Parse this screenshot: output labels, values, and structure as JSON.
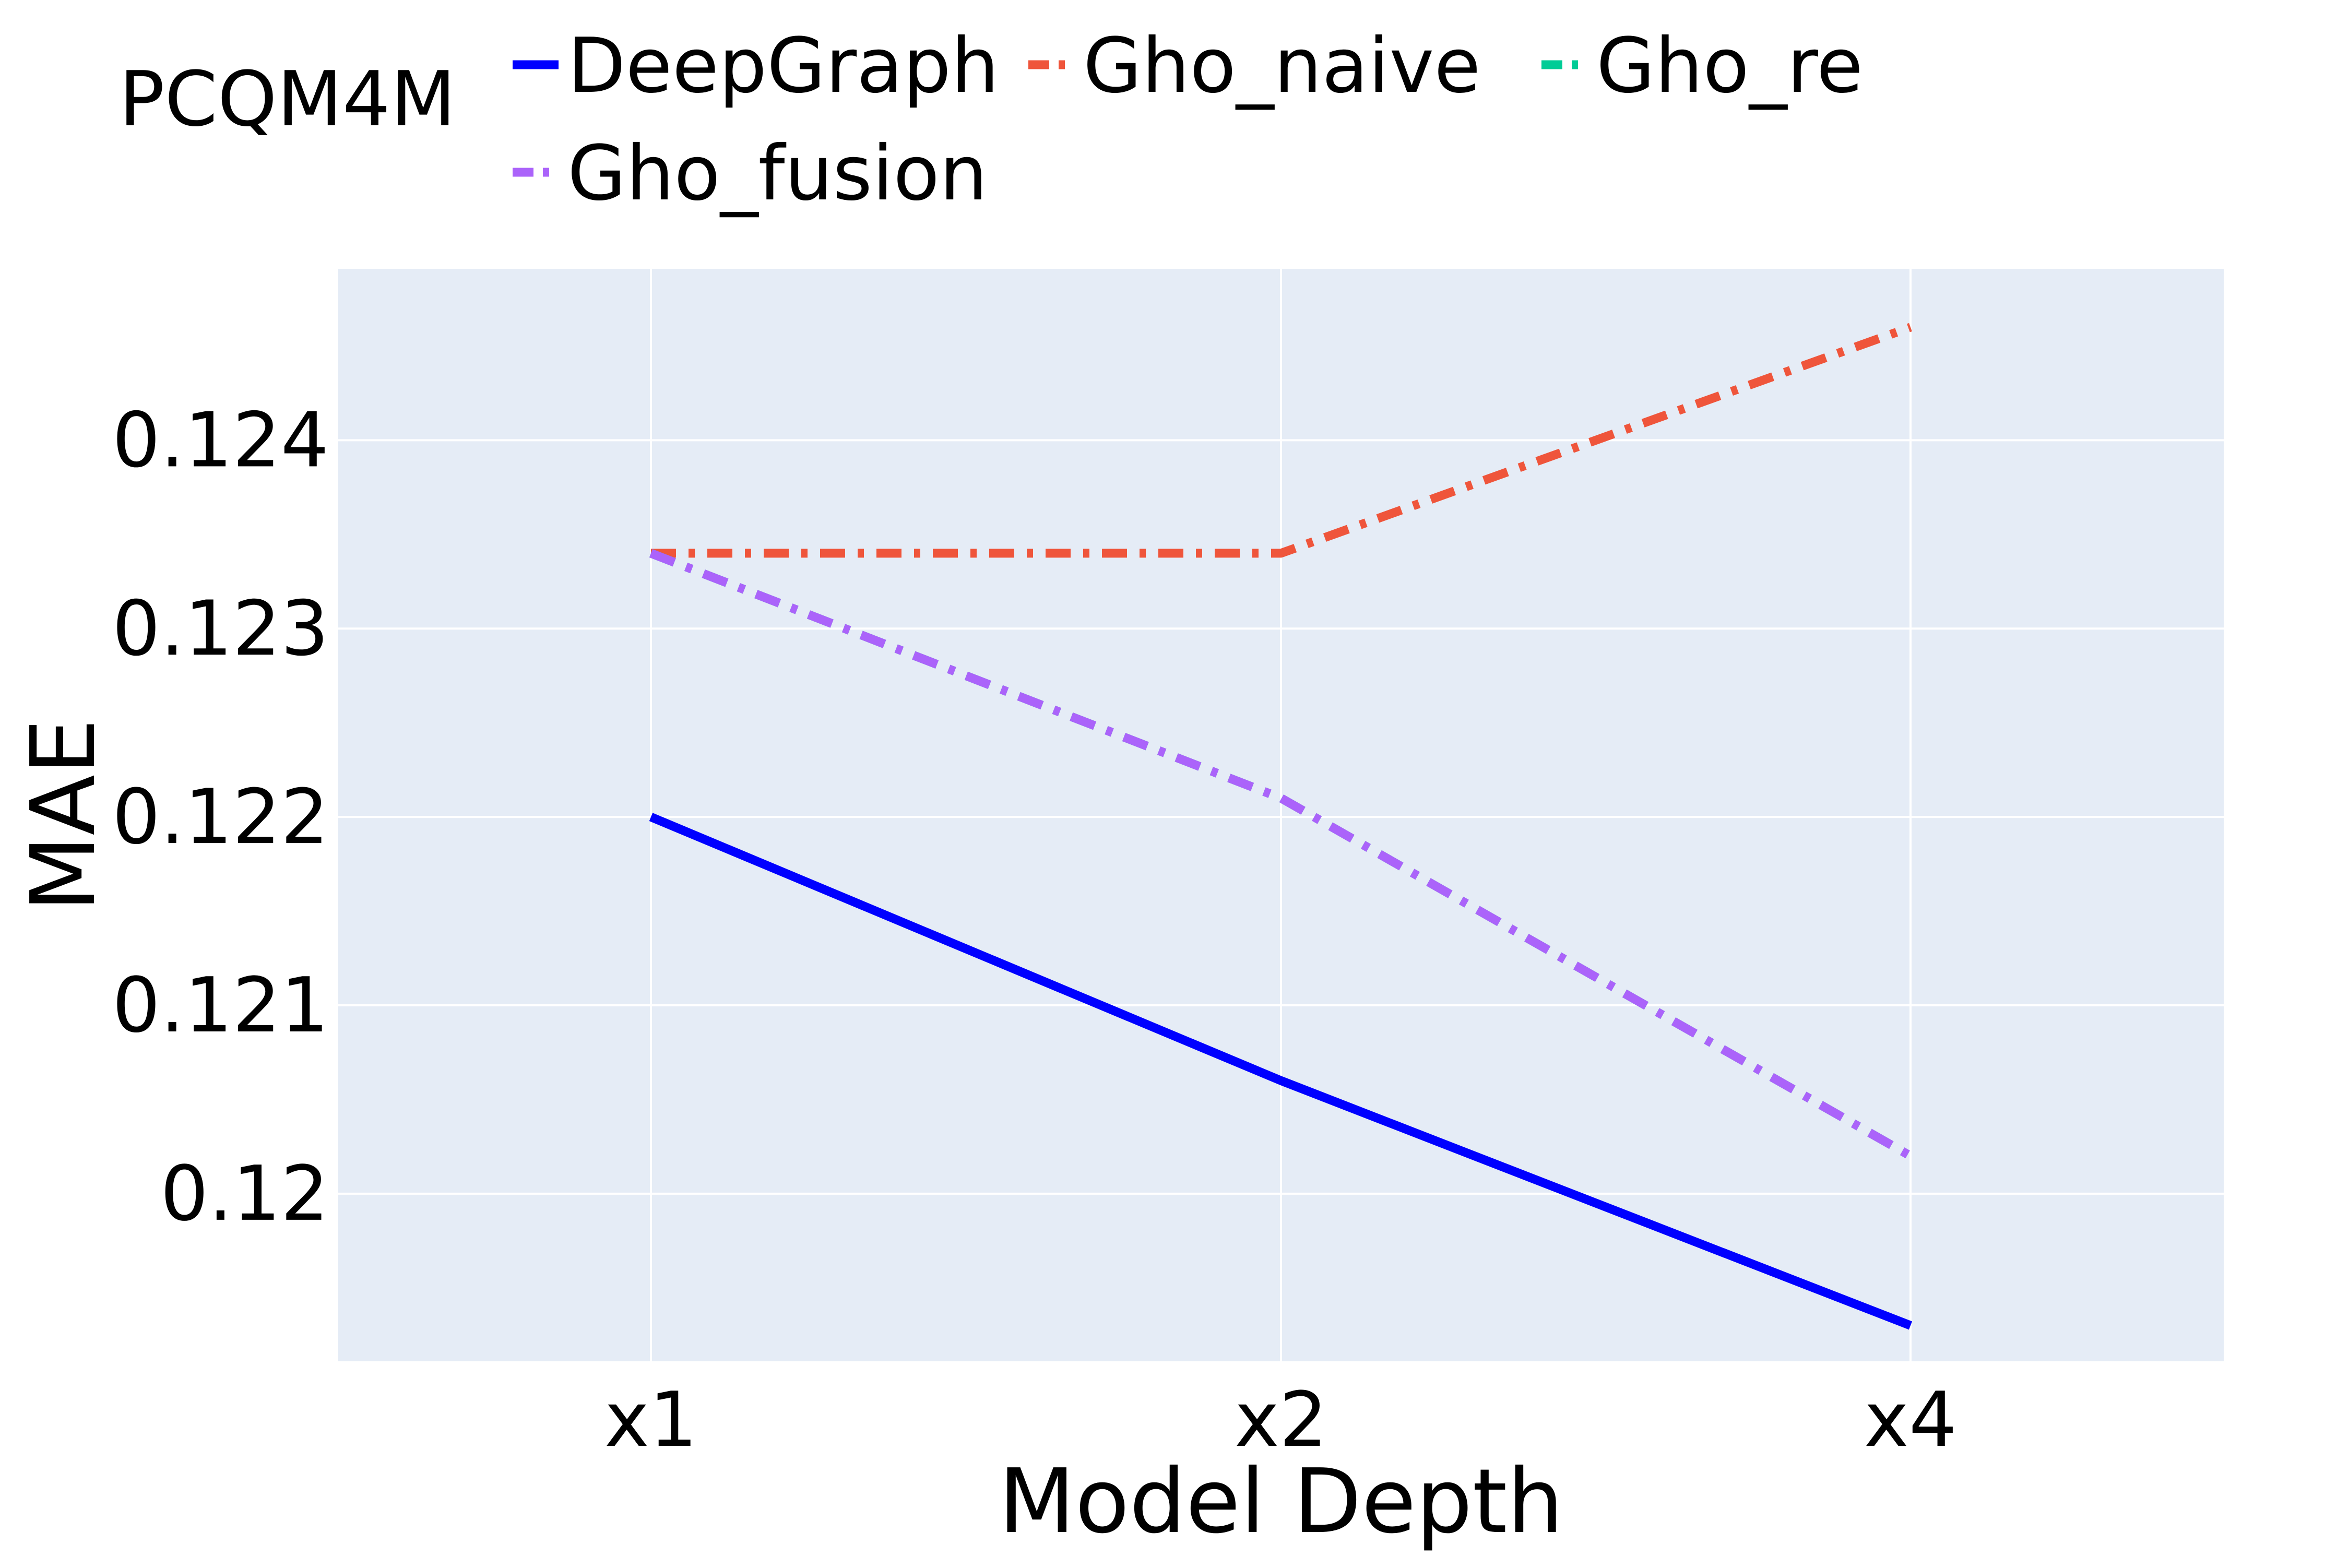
{
  "chart_data": {
    "type": "line",
    "legend_title": "PCQM4M",
    "xlabel": "Model Depth",
    "ylabel": "MAE",
    "categories": [
      "x1",
      "x2",
      "x4"
    ],
    "y_ticks": [
      0.12,
      0.121,
      0.122,
      0.123,
      0.124
    ],
    "y_tick_labels": [
      "0.12",
      "0.121",
      "0.122",
      "0.123",
      "0.124"
    ],
    "ylim": [
      0.11911,
      0.12491
    ],
    "grid": true,
    "legend_position": "top",
    "plot_background": "#e5ecf6",
    "series": [
      {
        "name": "DeepGraph",
        "values": [
          0.122,
          0.1206,
          0.1193
        ],
        "color": "#0000ff",
        "dash": "solid"
      },
      {
        "name": "Gho_naive",
        "values": [
          0.1234,
          0.1234,
          0.1246
        ],
        "color": "#ef553b",
        "dash": "dashdot"
      },
      {
        "name": "Gho_re",
        "values": [
          0.1234,
          0.1221,
          0.1202
        ],
        "color": "#00cc96",
        "dash": "dashdot"
      },
      {
        "name": "Gho_fusion",
        "values": [
          0.1234,
          0.1221,
          0.1202
        ],
        "color": "#ab63fa",
        "dash": "dashdot"
      }
    ]
  }
}
